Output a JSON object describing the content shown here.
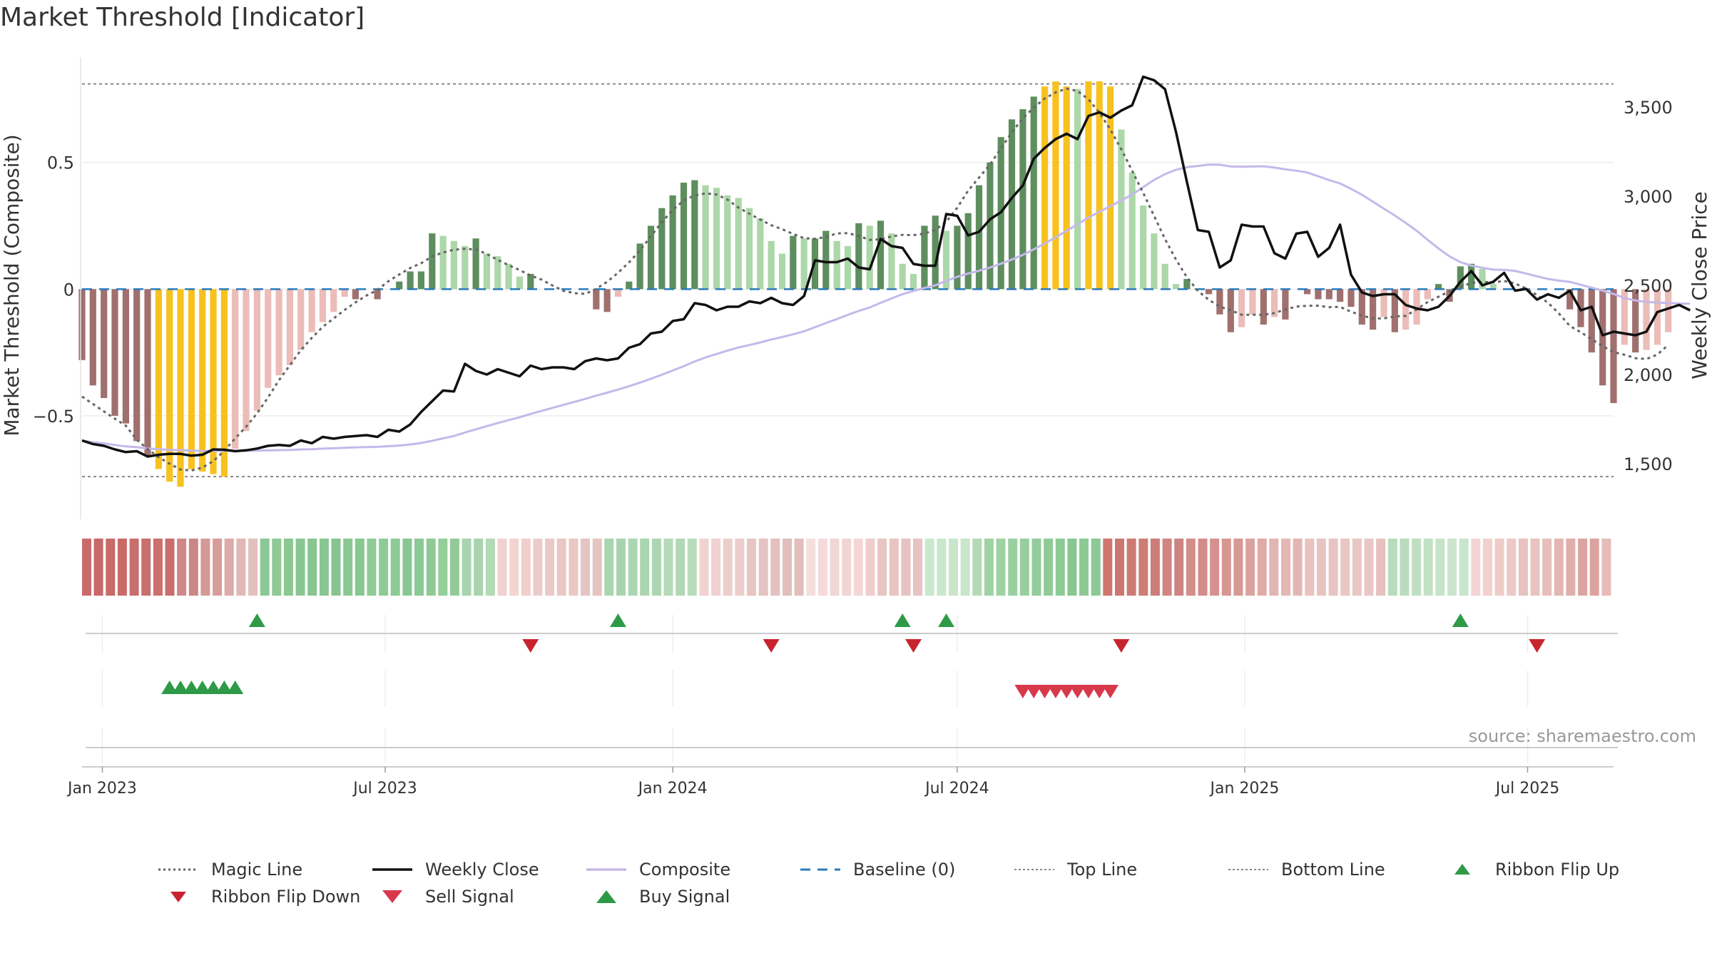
{
  "page": {
    "title": "Market Threshold [Indicator]",
    "source": "source: sharemaestro.com"
  },
  "chart_data": {
    "type": "bar",
    "title": "Market Threshold [Indicator]",
    "xlabel": "",
    "ylabel": "Market Threshold (Composite)",
    "ylabel_right": "Weekly Close Price",
    "ylim": [
      -0.9,
      0.93
    ],
    "ylim_right": [
      1200,
      3800
    ],
    "x_start": "2022-12-19",
    "x_end": "2025-08-25",
    "x_tick_labels": [
      "Jan 2023",
      "Jul 2023",
      "Jan 2024",
      "Jul 2024",
      "Jan 2025",
      "Jul 2025"
    ],
    "x_tick_dates": [
      "2023-01-01",
      "2023-07-01",
      "2024-01-01",
      "2024-07-01",
      "2025-01-01",
      "2025-07-01"
    ],
    "y_ticks": [
      -0.5,
      0,
      0.5
    ],
    "y_tick_labels": [
      "−0.5",
      "0",
      "0.5"
    ],
    "y_right_ticks": [
      1500,
      2000,
      2500,
      3000,
      3500
    ],
    "y_right_tick_labels": [
      "1,500",
      "2,000",
      "2,500",
      "3,000",
      "3,500"
    ],
    "top_line": 0.81,
    "bottom_line": -0.74,
    "grid": true,
    "legend_position": "bottom",
    "colors": {
      "strong_red": "#a0706e",
      "light_red": "#ebbcb8",
      "extreme": "#f7c21e",
      "strong_green": "#5e8e5e",
      "light_green": "#acd7a8",
      "weekly_close": "#111111",
      "composite": "#c5b8ea",
      "magic_line": "#666666",
      "baseline": "#2b7bb9",
      "threshold_lines": "#888888",
      "buy": "#2e9a48",
      "sell": "#d7394a",
      "flip_down": "#c8242f"
    },
    "composite_bars": {
      "values": [
        -0.28,
        -0.38,
        -0.43,
        -0.5,
        -0.53,
        -0.6,
        -0.66,
        -0.71,
        -0.76,
        -0.78,
        -0.71,
        -0.72,
        -0.73,
        -0.74,
        -0.63,
        -0.56,
        -0.48,
        -0.39,
        -0.34,
        -0.3,
        -0.24,
        -0.17,
        -0.13,
        -0.09,
        -0.03,
        -0.04,
        0,
        -0.04,
        0,
        0.03,
        0.07,
        0.07,
        0.22,
        0.21,
        0.19,
        0.17,
        0.2,
        0.14,
        0.13,
        0.1,
        0.05,
        0.06,
        0,
        0,
        0,
        0,
        0,
        -0.08,
        -0.09,
        -0.03,
        0.03,
        0.18,
        0.25,
        0.32,
        0.37,
        0.42,
        0.43,
        0.41,
        0.4,
        0.37,
        0.36,
        0.32,
        0.28,
        0.19,
        0.14,
        0.21,
        0.2,
        0.2,
        0.23,
        0.19,
        0.17,
        0.26,
        0.25,
        0.27,
        0.22,
        0.1,
        0.06,
        0.25,
        0.29,
        0.23,
        0.25,
        0.3,
        0.41,
        0.5,
        0.6,
        0.67,
        0.71,
        0.76,
        0.8,
        0.82,
        0.8,
        0.79,
        0.82,
        0.82,
        0.8,
        0.63,
        0.46,
        0.33,
        0.22,
        0.1,
        0.02,
        0.04,
        0,
        -0.02,
        -0.1,
        -0.17,
        -0.15,
        -0.1,
        -0.14,
        -0.11,
        -0.12,
        0,
        -0.02,
        -0.04,
        -0.04,
        -0.05,
        -0.07,
        -0.14,
        -0.16,
        -0.11,
        -0.17,
        -0.16,
        -0.14,
        -0.04,
        0.02,
        -0.05,
        0.09,
        0.1,
        0.08,
        0.02,
        0,
        0,
        0,
        0,
        0,
        0,
        -0.08,
        -0.15,
        -0.25,
        -0.38,
        -0.45,
        -0.22,
        -0.25,
        -0.24,
        -0.22,
        -0.17
      ]
    },
    "weekly_close": [
      1630,
      1610,
      1600,
      1580,
      1565,
      1570,
      1540,
      1550,
      1555,
      1555,
      1545,
      1550,
      1580,
      1578,
      1570,
      1575,
      1585,
      1600,
      1605,
      1600,
      1630,
      1615,
      1650,
      1640,
      1650,
      1655,
      1660,
      1650,
      1690,
      1680,
      1720,
      1790,
      1850,
      1910,
      1905,
      2060,
      2020,
      2000,
      2030,
      2010,
      1990,
      2050,
      2030,
      2040,
      2040,
      2030,
      2075,
      2090,
      2080,
      2090,
      2150,
      2170,
      2230,
      2240,
      2300,
      2310,
      2400,
      2390,
      2360,
      2380,
      2380,
      2410,
      2400,
      2430,
      2400,
      2390,
      2440,
      2640,
      2630,
      2630,
      2650,
      2600,
      2590,
      2760,
      2720,
      2710,
      2620,
      2610,
      2610,
      2900,
      2890,
      2780,
      2800,
      2870,
      2910,
      2990,
      3060,
      3210,
      3270,
      3320,
      3350,
      3320,
      3450,
      3470,
      3440,
      3480,
      3510,
      3670,
      3650,
      3600,
      3360,
      3080,
      2810,
      2800,
      2600,
      2640,
      2840,
      2830,
      2830,
      2680,
      2650,
      2790,
      2800,
      2660,
      2710,
      2840,
      2560,
      2460,
      2440,
      2450,
      2450,
      2390,
      2370,
      2360,
      2380,
      2440,
      2520,
      2580,
      2500,
      2520,
      2570,
      2470,
      2480,
      2420,
      2450,
      2430,
      2470,
      2360,
      2380,
      2220,
      2240,
      2230,
      2220,
      2240,
      2350,
      2370,
      2390,
      2360
    ]
  },
  "ribbon": {
    "colors": [
      "#c96b6b",
      "#c86867",
      "#c86b67",
      "#c86b67",
      "#c96f6d",
      "#c7706e",
      "#cd6f6c",
      "#c86e6c",
      "#cf8787",
      "#ca8785",
      "#d39a98",
      "#d79d9b",
      "#ddaba9",
      "#e1b8b5",
      "#e2c0be",
      "#8cc895",
      "#8ec996",
      "#8bc891",
      "#89c692",
      "#87c68f",
      "#88c692",
      "#87c490",
      "#89c891",
      "#87c890",
      "#8fcb97",
      "#8ccb97",
      "#8dca95",
      "#89c692",
      "#89c993",
      "#8fca95",
      "#94ce9a",
      "#92cb99",
      "#a8d5ad",
      "#a9d4ae",
      "#b2dab5",
      "#f0d2d0",
      "#f2d4d1",
      "#f0cfcd",
      "#ecccca",
      "#eac9c6",
      "#e9c7c4",
      "#e8c8c4",
      "#e5c4c2",
      "#e5c4c2",
      "#a9d6af",
      "#a8d4ad",
      "#acd6b1",
      "#abd5af",
      "#acd6b1",
      "#b4dab7",
      "#b1d8b5",
      "#b8dcbb",
      "#f0d3d0",
      "#f0d1cf",
      "#ecceca",
      "#ebcdc9",
      "#e6c5c2",
      "#e5c3c0",
      "#e4c0be",
      "#e2bebc",
      "#e4bebc",
      "#f5dfdd",
      "#f4dad9",
      "#f2d6d5",
      "#f1d5d2",
      "#f3d7d6",
      "#eecdcb",
      "#e9c5c3",
      "#e8c4c2",
      "#e6c2c0",
      "#e7c3c1",
      "#cae8cd",
      "#c9e7cc",
      "#c9e6cb",
      "#c8e6ca",
      "#b3dab5",
      "#9fd3a4",
      "#9ed2a3",
      "#9ad0a1",
      "#97ce9d",
      "#94cd9b",
      "#8fcb97",
      "#8ccb95",
      "#87c791",
      "#8cca94",
      "#8cc994",
      "#d0766e",
      "#cd7670",
      "#cd7a74",
      "#cd7c76",
      "#cd7c78",
      "#d18480",
      "#cc8582",
      "#d38d8b",
      "#d58c89",
      "#d6918e",
      "#d79791",
      "#d89995",
      "#dba39f",
      "#e0aaa7",
      "#e3b5b2",
      "#e3b8b5",
      "#e3b6b3",
      "#e8c3c0",
      "#e8c4c1",
      "#e8c4c2",
      "#e9c7c4",
      "#e9c6c2",
      "#e9c7c4",
      "#e6c1bf",
      "#b8dcbb",
      "#b9ddbc",
      "#bfdfc2",
      "#c2e1c5",
      "#c6e4c8",
      "#c9e6cc",
      "#c9e5cb",
      "#f3d5d3",
      "#f1d0cd",
      "#eecbc8",
      "#ebc9c5",
      "#e7c2bf",
      "#e8c3c0",
      "#e6bebb",
      "#e2b6b3",
      "#dfaeab",
      "#dca4a1",
      "#dba39f",
      "#e6bcb8"
    ]
  },
  "signals": {
    "ribbon_flip_up": [
      "2023-04-10",
      "2023-11-27",
      "2024-05-27",
      "2024-06-24",
      "2025-05-19"
    ],
    "ribbon_flip_down": [
      "2023-10-02",
      "2024-03-04",
      "2024-06-03",
      "2024-10-14",
      "2025-07-07"
    ],
    "buy_signal": [
      "2023-02-13",
      "2023-02-20",
      "2023-02-27",
      "2023-03-06",
      "2023-03-13",
      "2023-03-20",
      "2023-03-27"
    ],
    "sell_signal": [
      "2024-08-12",
      "2024-08-19",
      "2024-08-26",
      "2024-09-02",
      "2024-09-09",
      "2024-09-16",
      "2024-09-23",
      "2024-09-30",
      "2024-10-07"
    ]
  },
  "legend": {
    "items": [
      {
        "label": "Magic Line",
        "icon": "dotted-line-icon"
      },
      {
        "label": "Weekly Close",
        "icon": "solid-line-icon"
      },
      {
        "label": "Composite",
        "icon": "composite-line-icon"
      },
      {
        "label": "Baseline (0)",
        "icon": "dashed-line-icon"
      },
      {
        "label": "Top Line",
        "icon": "dotted-line-icon"
      },
      {
        "label": "Bottom Line",
        "icon": "dotted-line-icon"
      },
      {
        "label": "Ribbon Flip Up",
        "icon": "triangle-up-icon"
      },
      {
        "label": "Ribbon Flip Down",
        "icon": "triangle-down-icon"
      },
      {
        "label": "Sell Signal",
        "icon": "triangle-down-icon"
      },
      {
        "label": "Buy Signal",
        "icon": "triangle-up-icon"
      }
    ]
  }
}
